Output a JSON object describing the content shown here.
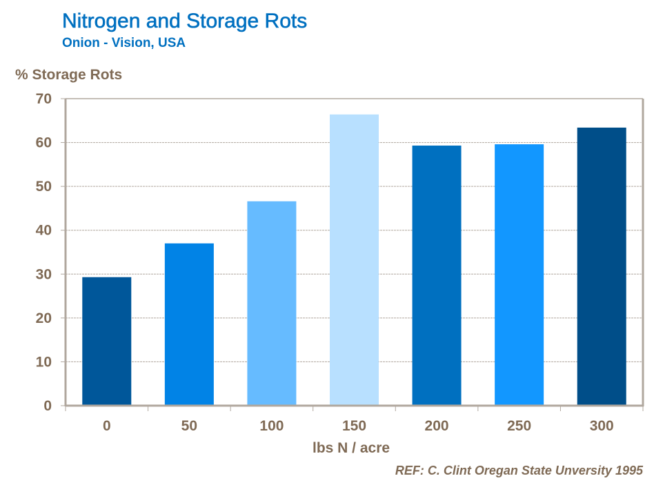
{
  "chart_data": {
    "type": "bar",
    "title": "Nitrogen and Storage Rots",
    "subtitle": "Onion - Vision, USA",
    "ylabel": "% Storage Rots",
    "xlabel": "lbs N / acre",
    "reference": "REF: C. Clint Oregan State Unversity  1995",
    "categories": [
      "0",
      "50",
      "100",
      "150",
      "200",
      "250",
      "300"
    ],
    "values": [
      29.3,
      37.0,
      46.6,
      66.4,
      59.3,
      59.6,
      63.4
    ],
    "bar_colors": [
      "#00579A",
      "#0183E6",
      "#66BBFF",
      "#B8E0FF",
      "#0070C0",
      "#1297FF",
      "#004E89"
    ],
    "ylim": [
      0,
      70
    ],
    "yticks": [
      "0",
      "10",
      "20",
      "30",
      "40",
      "50",
      "60",
      "70"
    ],
    "grid": true,
    "legend": "none"
  }
}
